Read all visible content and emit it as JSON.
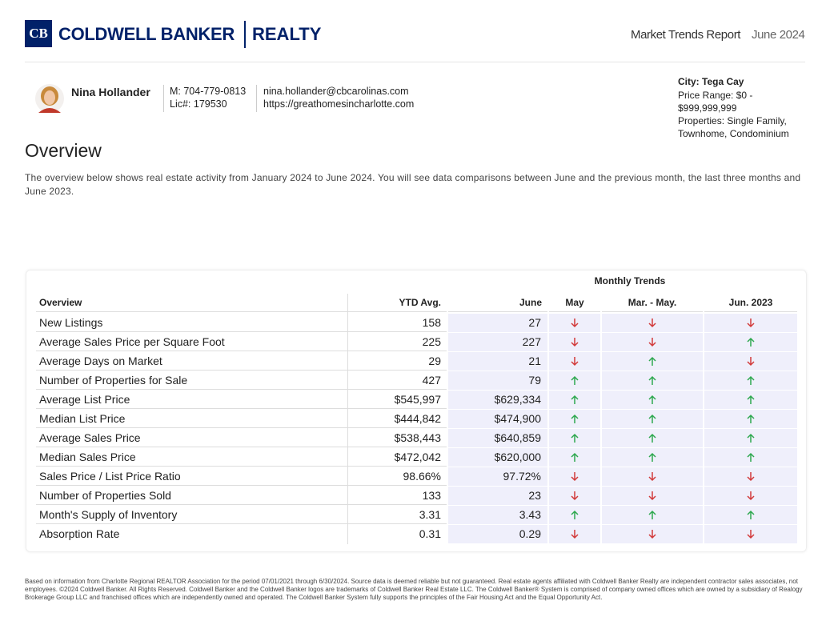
{
  "header": {
    "logo": {
      "monogram": "CB",
      "brand": "COLDWELL BANKER",
      "division": "REALTY"
    },
    "report_title": "Market Trends Report",
    "report_date": "June 2024"
  },
  "agent": {
    "name": "Nina Hollander",
    "phone": "M: 704-779-0813",
    "license": "Lic#: 179530",
    "email": "nina.hollander@cbcarolinas.com",
    "website": "https://greathomesincharlotte.com"
  },
  "filters": {
    "city": "City: Tega Cay",
    "price_range": "Price Range: $0 - $999,999,999",
    "properties": "Properties: Single Family, Townhome, Condominium"
  },
  "overview": {
    "heading": "Overview",
    "description": "The overview below shows real estate activity from January 2024 to June 2024. You will see data comparisons between June and the previous month, the last three months and June 2023."
  },
  "table": {
    "group_header": "Monthly Trends",
    "columns": [
      "Overview",
      "YTD Avg.",
      "June",
      "May",
      "Mar. - May.",
      "Jun. 2023"
    ],
    "rows": [
      {
        "label": "New Listings",
        "ytd": "158",
        "june": "27",
        "trends": [
          "down",
          "down",
          "down"
        ]
      },
      {
        "label": "Average Sales Price per Square Foot",
        "ytd": "225",
        "june": "227",
        "trends": [
          "down",
          "down",
          "up"
        ]
      },
      {
        "label": "Average Days on Market",
        "ytd": "29",
        "june": "21",
        "trends": [
          "down",
          "up",
          "down"
        ]
      },
      {
        "label": "Number of Properties for Sale",
        "ytd": "427",
        "june": "79",
        "trends": [
          "up",
          "up",
          "up"
        ]
      },
      {
        "label": "Average List Price",
        "ytd": "$545,997",
        "june": "$629,334",
        "trends": [
          "up",
          "up",
          "up"
        ]
      },
      {
        "label": "Median List Price",
        "ytd": "$444,842",
        "june": "$474,900",
        "trends": [
          "up",
          "up",
          "up"
        ]
      },
      {
        "label": "Average Sales Price",
        "ytd": "$538,443",
        "june": "$640,859",
        "trends": [
          "up",
          "up",
          "up"
        ]
      },
      {
        "label": "Median Sales Price",
        "ytd": "$472,042",
        "june": "$620,000",
        "trends": [
          "up",
          "up",
          "up"
        ]
      },
      {
        "label": "Sales Price / List Price Ratio",
        "ytd": "98.66%",
        "june": "97.72%",
        "trends": [
          "down",
          "down",
          "down"
        ]
      },
      {
        "label": "Number of Properties Sold",
        "ytd": "133",
        "june": "23",
        "trends": [
          "down",
          "down",
          "down"
        ]
      },
      {
        "label": "Month's Supply of Inventory",
        "ytd": "3.31",
        "june": "3.43",
        "trends": [
          "up",
          "up",
          "up"
        ]
      },
      {
        "label": "Absorption Rate",
        "ytd": "0.31",
        "june": "0.29",
        "trends": [
          "down",
          "down",
          "down"
        ]
      }
    ]
  },
  "footer": "Based on information from Charlotte Regional REALTOR Association for the period 07/01/2021 through 6/30/2024. Source data is deemed reliable but not guaranteed. Real estate agents affiliated with Coldwell Banker Realty are independent contractor sales associates, not employees. ©2024 Coldwell Banker. All Rights Reserved. Coldwell Banker and the Coldwell Banker logos are trademarks of Coldwell Banker Real Estate LLC. The Coldwell Banker® System is comprised of company owned offices which are owned by a subsidiary of Realogy Brokerage Group LLC and franchised offices which are independently owned and operated. The Coldwell Banker System fully supports the principles of the Fair Housing Act and the Equal Opportunity Act."
}
